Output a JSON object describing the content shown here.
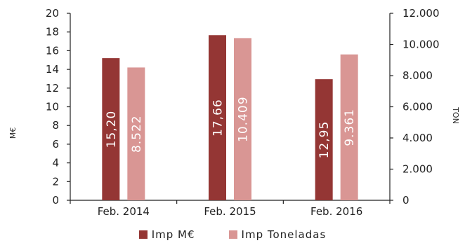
{
  "chart_data": {
    "type": "bar",
    "categories": [
      "Feb. 2014",
      "Feb. 2015",
      "Feb. 2016"
    ],
    "series": [
      {
        "name": "Imp M€",
        "axis": "left",
        "color": "#943634",
        "values": [
          15.2,
          17.66,
          12.95
        ],
        "labels": [
          "15,20",
          "17,66",
          "12,95"
        ]
      },
      {
        "name": "Imp Toneladas",
        "axis": "right",
        "color": "#D99694",
        "values": [
          8522,
          10409,
          9361
        ],
        "labels": [
          "8.522",
          "10.409",
          "9.361"
        ]
      }
    ],
    "y_left": {
      "label": "M€",
      "lim": [
        0,
        20
      ],
      "ticks": [
        "0",
        "2",
        "4",
        "6",
        "8",
        "10",
        "12",
        "14",
        "16",
        "18",
        "20"
      ]
    },
    "y_right": {
      "label": "TON",
      "lim": [
        0,
        12000
      ],
      "ticks": [
        "0",
        "2.000",
        "4.000",
        "6.000",
        "8.000",
        "10.000",
        "12.000"
      ]
    },
    "grid": false,
    "legend_position": "bottom"
  }
}
